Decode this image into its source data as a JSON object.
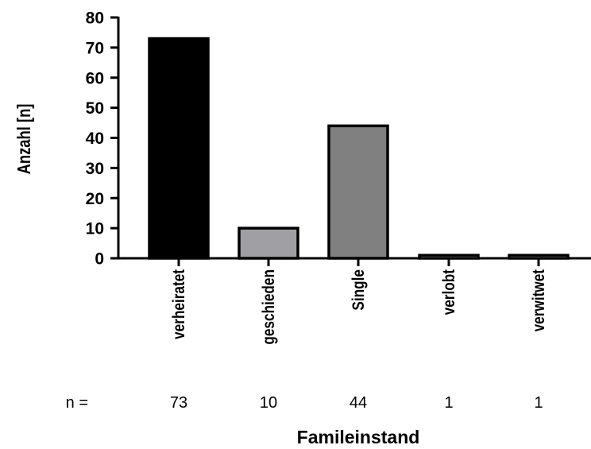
{
  "chart_data": {
    "type": "bar",
    "categories": [
      "verheiratet",
      "geschieden",
      "Single",
      "verlobt",
      "verwitwet"
    ],
    "values": [
      73,
      10,
      44,
      1,
      1
    ],
    "bar_colors": [
      "#000000",
      "#a0a0a4",
      "#808080",
      "#ffffff",
      "#ffffff"
    ],
    "xlabel": "Famileinstand",
    "ylabel": "Anzahl [n]",
    "ylim": [
      0,
      80
    ],
    "yticks": [
      0,
      10,
      20,
      30,
      40,
      50,
      60,
      70,
      80
    ],
    "n_row": {
      "label": "n =",
      "values": [
        "73",
        "10",
        "44",
        "1",
        "1"
      ]
    },
    "grid": false,
    "legend": "none"
  }
}
